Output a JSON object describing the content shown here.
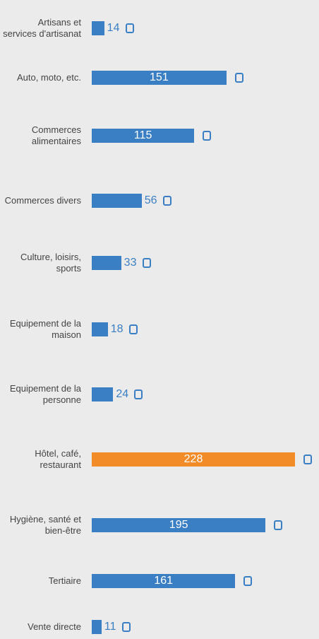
{
  "chart_data": {
    "type": "bar",
    "orientation": "horizontal",
    "categories": [
      "Artisans et services d'artisanat",
      "Auto, moto, etc.",
      "Commerces alimentaires",
      "Commerces divers",
      "Culture, loisirs, sports",
      "Equipement de la maison",
      "Equipement de la personne",
      "Hôtel, café, restaurant",
      "Hygiène, santé et bien-être",
      "Tertiaire",
      "Vente directe"
    ],
    "values": [
      14,
      151,
      115,
      56,
      33,
      18,
      24,
      228,
      195,
      161,
      11
    ],
    "colors": [
      "#3a7fc4",
      "#3a7fc4",
      "#3a7fc4",
      "#3a7fc4",
      "#3a7fc4",
      "#3a7fc4",
      "#3a7fc4",
      "#f28c28",
      "#3a7fc4",
      "#3a7fc4",
      "#3a7fc4"
    ]
  }
}
